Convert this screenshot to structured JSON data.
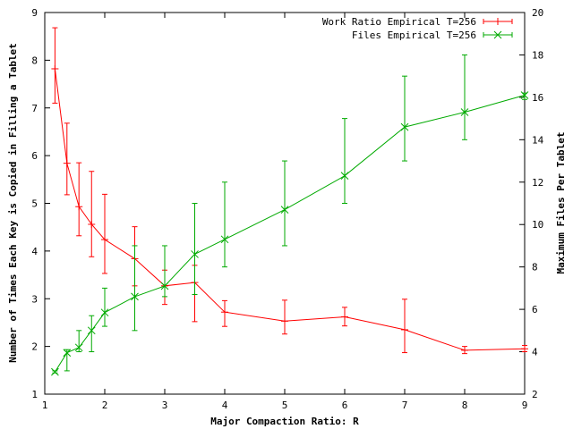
{
  "chart_data": {
    "type": "line",
    "title": "",
    "xlabel": "Major Compaction Ratio: R",
    "ylabel": "Number of Times Each Key is Copied in Filling a Tablet",
    "y2label": "Maximum Files Per Tablet",
    "xlim": [
      1,
      9
    ],
    "ylim": [
      1,
      9
    ],
    "y2lim": [
      2,
      20
    ],
    "x_ticks": [
      1,
      2,
      3,
      4,
      5,
      6,
      7,
      8,
      9
    ],
    "y_ticks": [
      1,
      2,
      3,
      4,
      5,
      6,
      7,
      8,
      9
    ],
    "y2_ticks": [
      2,
      4,
      6,
      8,
      10,
      12,
      14,
      16,
      18,
      20
    ],
    "grid": false,
    "legend_position": "top-right",
    "series": [
      {
        "name": "Work Ratio Empirical T=256",
        "axis": "left",
        "color": "#ff0000",
        "marker": "plus",
        "points": [
          {
            "x": 1.17,
            "y": 7.82,
            "lo": 7.1,
            "hi": 8.68
          },
          {
            "x": 1.37,
            "y": 5.84,
            "lo": 5.18,
            "hi": 6.68
          },
          {
            "x": 1.57,
            "y": 4.93,
            "lo": 4.32,
            "hi": 5.85
          },
          {
            "x": 1.78,
            "y": 4.56,
            "lo": 3.88,
            "hi": 5.67
          },
          {
            "x": 2.0,
            "y": 4.24,
            "lo": 3.53,
            "hi": 5.19
          },
          {
            "x": 2.5,
            "y": 3.84,
            "lo": 3.27,
            "hi": 4.51
          },
          {
            "x": 3.0,
            "y": 3.27,
            "lo": 2.88,
            "hi": 3.6
          },
          {
            "x": 3.5,
            "y": 3.34,
            "lo": 2.52,
            "hi": 3.7
          },
          {
            "x": 4.0,
            "y": 2.72,
            "lo": 2.42,
            "hi": 2.96
          },
          {
            "x": 5.0,
            "y": 2.53,
            "lo": 2.26,
            "hi": 2.97
          },
          {
            "x": 6.0,
            "y": 2.62,
            "lo": 2.43,
            "hi": 2.82
          },
          {
            "x": 7.0,
            "y": 2.35,
            "lo": 1.87,
            "hi": 2.99
          },
          {
            "x": 8.0,
            "y": 1.92,
            "lo": 1.85,
            "hi": 2.0
          },
          {
            "x": 9.0,
            "y": 1.95,
            "lo": 1.89,
            "hi": 2.02
          }
        ]
      },
      {
        "name": "Files Empirical T=256",
        "axis": "right",
        "color": "#00aa00",
        "marker": "cross",
        "points": [
          {
            "x": 1.17,
            "y": 3.05,
            "lo": 3.0,
            "hi": 3.1
          },
          {
            "x": 1.37,
            "y": 3.95,
            "lo": 3.1,
            "hi": 4.1
          },
          {
            "x": 1.57,
            "y": 4.2,
            "lo": 4.0,
            "hi": 5.0
          },
          {
            "x": 1.78,
            "y": 5.0,
            "lo": 4.0,
            "hi": 5.7
          },
          {
            "x": 2.0,
            "y": 5.85,
            "lo": 5.2,
            "hi": 7.0
          },
          {
            "x": 2.5,
            "y": 6.6,
            "lo": 5.0,
            "hi": 9.0
          },
          {
            "x": 3.0,
            "y": 7.1,
            "lo": 6.6,
            "hi": 9.0
          },
          {
            "x": 3.5,
            "y": 8.6,
            "lo": 6.7,
            "hi": 11.0
          },
          {
            "x": 4.0,
            "y": 9.3,
            "lo": 8.0,
            "hi": 12.0
          },
          {
            "x": 5.0,
            "y": 10.7,
            "lo": 9.0,
            "hi": 13.0
          },
          {
            "x": 6.0,
            "y": 12.3,
            "lo": 11.0,
            "hi": 15.0
          },
          {
            "x": 7.0,
            "y": 14.6,
            "lo": 13.0,
            "hi": 17.0
          },
          {
            "x": 8.0,
            "y": 15.3,
            "lo": 14.0,
            "hi": 18.0
          },
          {
            "x": 9.0,
            "y": 16.1,
            "lo": 15.9,
            "hi": 16.2
          }
        ]
      }
    ]
  }
}
